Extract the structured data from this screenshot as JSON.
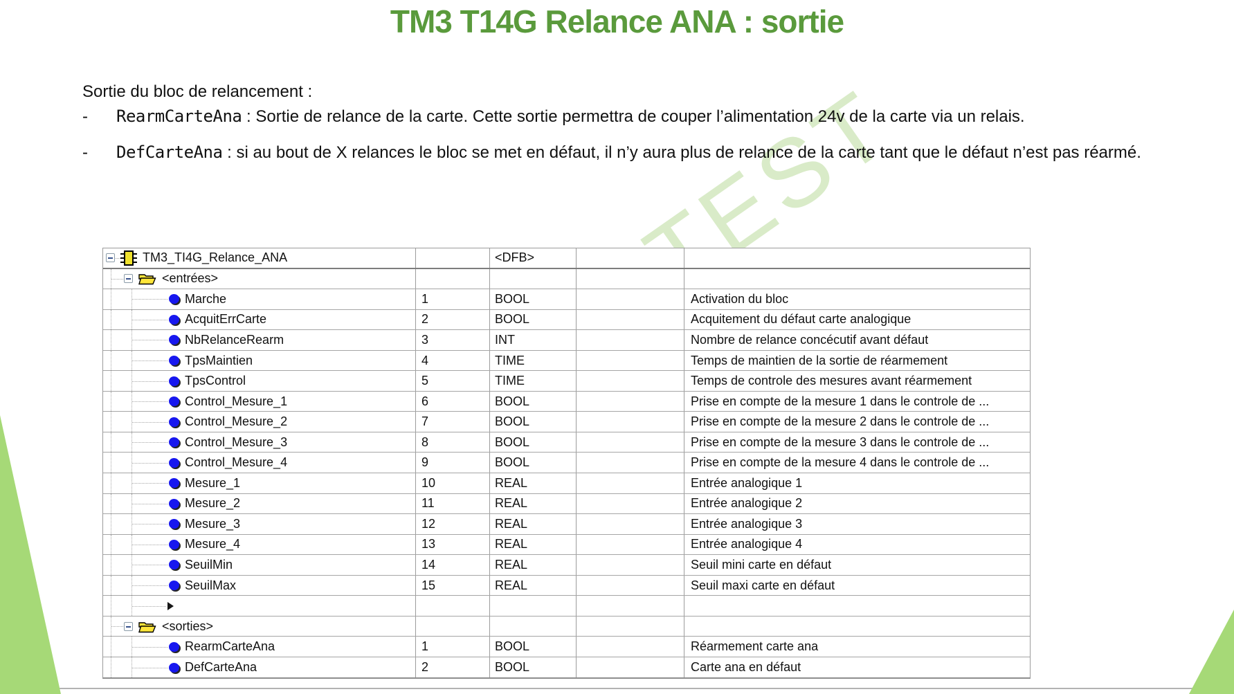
{
  "slide": {
    "title": "TM3 T14G Relance ANA : sortie",
    "intro": "Sortie du bloc de relancement :",
    "bullets": [
      {
        "dash": "-",
        "code": "RearmCarteAna",
        "text": " : Sortie de relance de la carte. Cette sortie permettra de couper l’alimentation 24v de la carte via un relais."
      },
      {
        "dash": "-",
        "code": "DefCarteAna",
        "text": " : si au bout de X relances le bloc se met en défaut, il n’y aura plus de relance de la carte tant que le défaut n’est pas réarmé."
      }
    ],
    "watermark": "TEST"
  },
  "colors": {
    "title_green": "#5a9a3c",
    "triangle_green": "#a6d977",
    "watermark_green": "#d9ebc8",
    "grid_grey": "#9b9b9b",
    "pin_blue": "#1717ef",
    "folder_yellow": "#ffe63a",
    "dfb_yellow": "#f0e22e"
  },
  "icons": {
    "expand": "minus-box-icon",
    "block": "dfb-block-icon",
    "folder": "open-folder-icon",
    "variable": "blue-pin-icon",
    "insert": "insert-row-arrow-icon"
  },
  "table": {
    "columns": [
      "name",
      "number",
      "type",
      "value",
      "comment"
    ],
    "rows": [
      {
        "kind": "root",
        "label": "TM3_TI4G_Relance_ANA",
        "num": "",
        "type": "<DFB>",
        "value": "",
        "comment": ""
      },
      {
        "kind": "folder",
        "label": "<entrées>",
        "num": "",
        "type": "",
        "value": "",
        "comment": ""
      },
      {
        "kind": "var",
        "label": "Marche",
        "num": "1",
        "type": "BOOL",
        "value": "",
        "comment": "Activation du bloc"
      },
      {
        "kind": "var",
        "label": "AcquitErrCarte",
        "num": "2",
        "type": "BOOL",
        "value": "",
        "comment": "Acquitement du défaut carte analogique"
      },
      {
        "kind": "var",
        "label": "NbRelanceRearm",
        "num": "3",
        "type": "INT",
        "value": "",
        "comment": "Nombre de relance concécutif avant défaut"
      },
      {
        "kind": "var",
        "label": "TpsMaintien",
        "num": "4",
        "type": "TIME",
        "value": "",
        "comment": "Temps de maintien de la sortie de réarmement"
      },
      {
        "kind": "var",
        "label": "TpsControl",
        "num": "5",
        "type": "TIME",
        "value": "",
        "comment": "Temps de controle des mesures avant réarmement"
      },
      {
        "kind": "var",
        "label": "Control_Mesure_1",
        "num": "6",
        "type": "BOOL",
        "value": "",
        "comment": "Prise en compte de la mesure 1 dans le controle de ..."
      },
      {
        "kind": "var",
        "label": "Control_Mesure_2",
        "num": "7",
        "type": "BOOL",
        "value": "",
        "comment": "Prise en compte de la mesure 2 dans le controle de ..."
      },
      {
        "kind": "var",
        "label": "Control_Mesure_3",
        "num": "8",
        "type": "BOOL",
        "value": "",
        "comment": "Prise en compte de la mesure 3 dans le controle de ..."
      },
      {
        "kind": "var",
        "label": "Control_Mesure_4",
        "num": "9",
        "type": "BOOL",
        "value": "",
        "comment": "Prise en compte de la mesure 4 dans le controle de ..."
      },
      {
        "kind": "var",
        "label": "Mesure_1",
        "num": "10",
        "type": "REAL",
        "value": "",
        "comment": "Entrée analogique 1"
      },
      {
        "kind": "var",
        "label": "Mesure_2",
        "num": "11",
        "type": "REAL",
        "value": "",
        "comment": "Entrée analogique 2"
      },
      {
        "kind": "var",
        "label": "Mesure_3",
        "num": "12",
        "type": "REAL",
        "value": "",
        "comment": "Entrée analogique 3"
      },
      {
        "kind": "var",
        "label": "Mesure_4",
        "num": "13",
        "type": "REAL",
        "value": "",
        "comment": "Entrée analogique 4"
      },
      {
        "kind": "var",
        "label": "SeuilMin",
        "num": "14",
        "type": "REAL",
        "value": "",
        "comment": "Seuil mini carte en défaut"
      },
      {
        "kind": "var",
        "label": "SeuilMax",
        "num": "15",
        "type": "REAL",
        "value": "",
        "comment": "Seuil maxi carte en défaut"
      },
      {
        "kind": "arrow",
        "label": "",
        "num": "",
        "type": "",
        "value": "",
        "comment": ""
      },
      {
        "kind": "folder",
        "label": "<sorties>",
        "num": "",
        "type": "",
        "value": "",
        "comment": ""
      },
      {
        "kind": "var",
        "label": "RearmCarteAna",
        "num": "1",
        "type": "BOOL",
        "value": "",
        "comment": "Réarmement carte ana"
      },
      {
        "kind": "var",
        "label": "DefCarteAna",
        "num": "2",
        "type": "BOOL",
        "value": "",
        "comment": "Carte ana en défaut"
      }
    ]
  }
}
